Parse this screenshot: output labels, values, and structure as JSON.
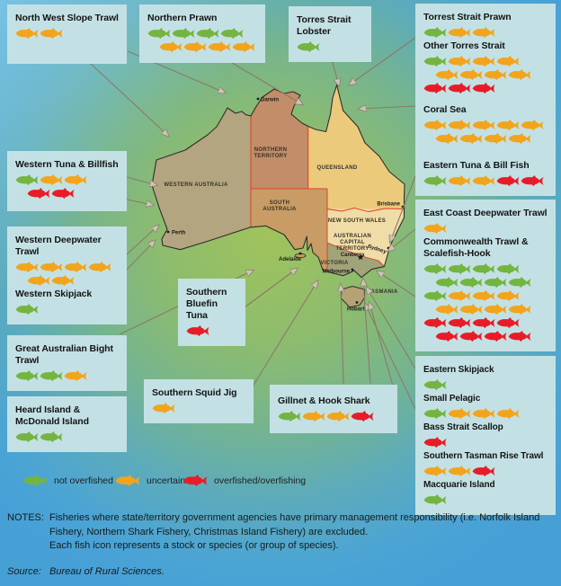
{
  "colors": {
    "g": "#74b440",
    "o": "#f2a41c",
    "r": "#e81c28"
  },
  "boxes": [
    {
      "sections": [
        {
          "title": "North West Slope Trawl",
          "rows": [
            [
              "o",
              "o"
            ]
          ]
        }
      ]
    },
    {
      "sections": [
        {
          "title": "Northern Prawn",
          "rows": [
            [
              "g",
              "g",
              "g",
              "g"
            ],
            [
              "o",
              "o",
              "o",
              "o"
            ]
          ]
        }
      ]
    },
    {
      "sections": [
        {
          "title": "Torres Strait Lobster",
          "rows": [
            [
              "g"
            ]
          ]
        }
      ]
    },
    {
      "sections": [
        {
          "title": "Torrest Strait Prawn",
          "rows": [
            [
              "g",
              "o",
              "o"
            ]
          ]
        },
        {
          "title": "Other Torres Strait",
          "rows": [
            [
              "g",
              "o",
              "o",
              "o"
            ],
            [
              "o",
              "o",
              "o",
              "o"
            ],
            [
              "r",
              "r",
              "r"
            ]
          ]
        }
      ]
    },
    {
      "sections": [
        {
          "title": "Coral Sea",
          "rows": [
            [
              "o",
              "o",
              "o",
              "o",
              "o"
            ],
            [
              "o",
              "o",
              "o",
              "o"
            ]
          ]
        }
      ]
    },
    {
      "sections": [
        {
          "title": "Eastern Tuna & Bill Fish",
          "rows": [
            [
              "g",
              "o",
              "o",
              "r",
              "r"
            ]
          ]
        }
      ]
    },
    {
      "sections": [
        {
          "title": "East Coast Deepwater Trawl",
          "rows": [
            [
              "o"
            ]
          ]
        },
        {
          "title": "Commonwealth Trawl & Scalefish-Hook",
          "rows": [
            [
              "g",
              "g",
              "g",
              "g"
            ],
            [
              "g",
              "g",
              "g",
              "g"
            ],
            [
              "g",
              "o",
              "o",
              "o"
            ],
            [
              "o",
              "o",
              "o",
              "o"
            ],
            [
              "r",
              "r",
              "r",
              "r"
            ],
            [
              "r",
              "r",
              "r",
              "r"
            ]
          ]
        }
      ]
    },
    {
      "sections": [
        {
          "title": "Eastern Skipjack",
          "rows": [
            [
              "g"
            ]
          ]
        },
        {
          "title": "Small Pelagic",
          "rows": [
            [
              "g",
              "o",
              "o",
              "o"
            ]
          ]
        },
        {
          "title": "Bass Strait Scallop",
          "rows": [
            [
              "r"
            ]
          ]
        },
        {
          "title": "Southern Tasman Rise Trawl",
          "rows": [
            [
              "o",
              "o",
              "r"
            ]
          ]
        },
        {
          "title": "Macquarie Island",
          "rows": [
            [
              "g"
            ]
          ]
        }
      ]
    },
    {
      "sections": [
        {
          "title": "Western Tuna & Billfish",
          "rows": [
            [
              "g",
              "o",
              "o"
            ],
            [
              "r",
              "r"
            ]
          ]
        }
      ]
    },
    {
      "sections": [
        {
          "title": "Western Deepwater Trawl",
          "rows": [
            [
              "o",
              "o",
              "o",
              "o"
            ],
            [
              "o",
              "o"
            ]
          ]
        },
        {
          "title": "Western Skipjack",
          "rows": [
            [
              "g"
            ]
          ]
        }
      ]
    },
    {
      "sections": [
        {
          "title": "Great Australian Bight Trawl",
          "rows": [
            [
              "g",
              "g",
              "o"
            ]
          ]
        }
      ]
    },
    {
      "sections": [
        {
          "title": "Heard Island & McDonald Island",
          "rows": [
            [
              "g",
              "g"
            ]
          ]
        }
      ]
    },
    {
      "sections": [
        {
          "title": "Southern Bluefin Tuna",
          "rows": [
            [
              "r"
            ]
          ]
        }
      ]
    },
    {
      "sections": [
        {
          "title": "Southern Squid Jig",
          "rows": [
            [
              "o"
            ]
          ]
        }
      ]
    },
    {
      "sections": [
        {
          "title": "Gillnet & Hook Shark",
          "rows": [
            [
              "g",
              "o",
              "o",
              "r"
            ]
          ]
        }
      ]
    }
  ],
  "legend": {
    "items": [
      {
        "code": "g",
        "label": "not overfished"
      },
      {
        "code": "o",
        "label": "uncertain"
      },
      {
        "code": "r",
        "label": "overfished/overfishing"
      }
    ]
  },
  "notes": {
    "label": "NOTES:",
    "lines": [
      "Fisheries where state/territory government agencies have primary management responsibility (i.e. Norfolk Island",
      "Fishery, Northern Shark Fishery, Christmas Island Fishery) are excluded.",
      "Each fish icon represents a stock or species (or group of species)."
    ]
  },
  "source": {
    "label": "Source:",
    "text": "Bureau of Rural Sciences."
  },
  "map": {
    "states": {
      "wa": "WESTERN AUSTRALIA",
      "nt1": "NORTHERN",
      "nt2": "TERRITORY",
      "qld": "QUEENSLAND",
      "sa1": "SOUTH",
      "sa2": "AUSTRALIA",
      "nsw": "NEW SOUTH WALES",
      "act1": "AUSTRALIAN",
      "act2": "CAPITAL",
      "act3": "TERRITORY",
      "act4": "Canberra",
      "vic": "VICTORIA",
      "tas": "TASMANIA"
    },
    "cities": {
      "darwin": "Darwin",
      "perth": "Perth",
      "adelaide": "Adelaide",
      "brisbane": "Brisbane",
      "sydney": "Sydney",
      "melbourne": "Melbourne",
      "hobart": "Hobart"
    }
  }
}
